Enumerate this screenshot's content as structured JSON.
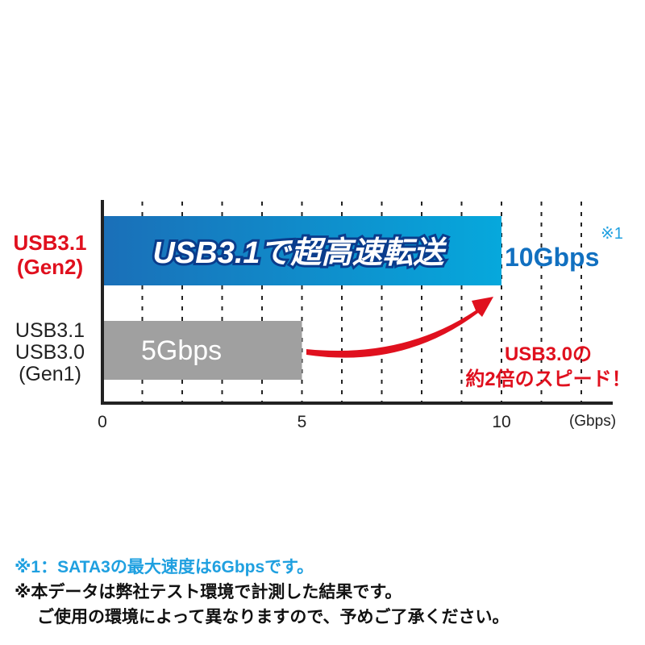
{
  "chart_data": {
    "type": "bar",
    "orientation": "horizontal",
    "categories": [
      "USB3.1 (Gen2)",
      "USB3.1 USB3.0 (Gen1)"
    ],
    "category_lines": [
      [
        "USB3.1",
        "(Gen2)"
      ],
      [
        "USB3.1",
        "USB3.0",
        "(Gen1)"
      ]
    ],
    "values": [
      10,
      5
    ],
    "bar_labels": [
      "USB3.1で超高速転送",
      "5Gbps"
    ],
    "value_labels": [
      "10Gbps",
      ""
    ],
    "value_footnote_mark": "※1",
    "xlim": [
      0,
      12
    ],
    "x_ticks": [
      0,
      5,
      10
    ],
    "x_tick_labels": [
      "0",
      "5",
      "10"
    ],
    "x_unit_label": "(Gbps)",
    "grid": "vertical dotted, every 1",
    "annotation": [
      "USB3.0の",
      "約2倍のスピード！"
    ],
    "colors": {
      "bar_top_start": "#1a6fb8",
      "bar_top_end": "#06a8dc",
      "bar_bottom": "#a0a0a0",
      "highlight_red": "#e0101e",
      "value_blue": "#1170c0"
    }
  },
  "notes": [
    "※1：SATA3の最大速度は6Gbpsです。",
    "※本データは弊社テスト環境で計測した結果です。",
    "ご使用の環境によって異なりますので、予めご了承ください。"
  ]
}
